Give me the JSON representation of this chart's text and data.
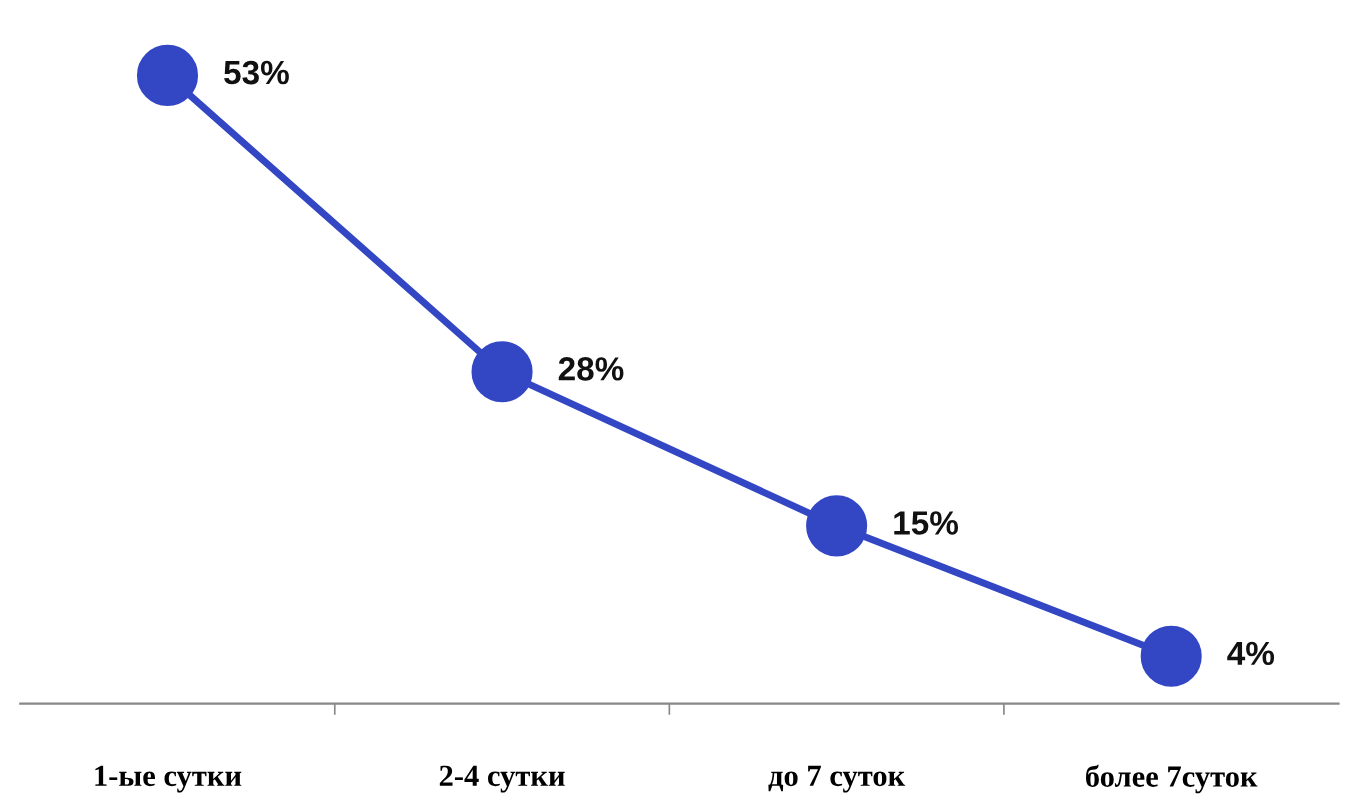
{
  "chart_data": {
    "type": "line",
    "categories": [
      "1-ые сутки",
      "2-4 сутки",
      "до 7 суток",
      "более 7суток"
    ],
    "series": [
      {
        "color": "#3347c4",
        "values": [
          53,
          28,
          15,
          4
        ],
        "value_labels": [
          "53%",
          "28%",
          "15%",
          "4%"
        ]
      }
    ],
    "marker": "circle",
    "line_style": "solid",
    "grid": false,
    "legend": false,
    "tick_labels": "x"
  }
}
